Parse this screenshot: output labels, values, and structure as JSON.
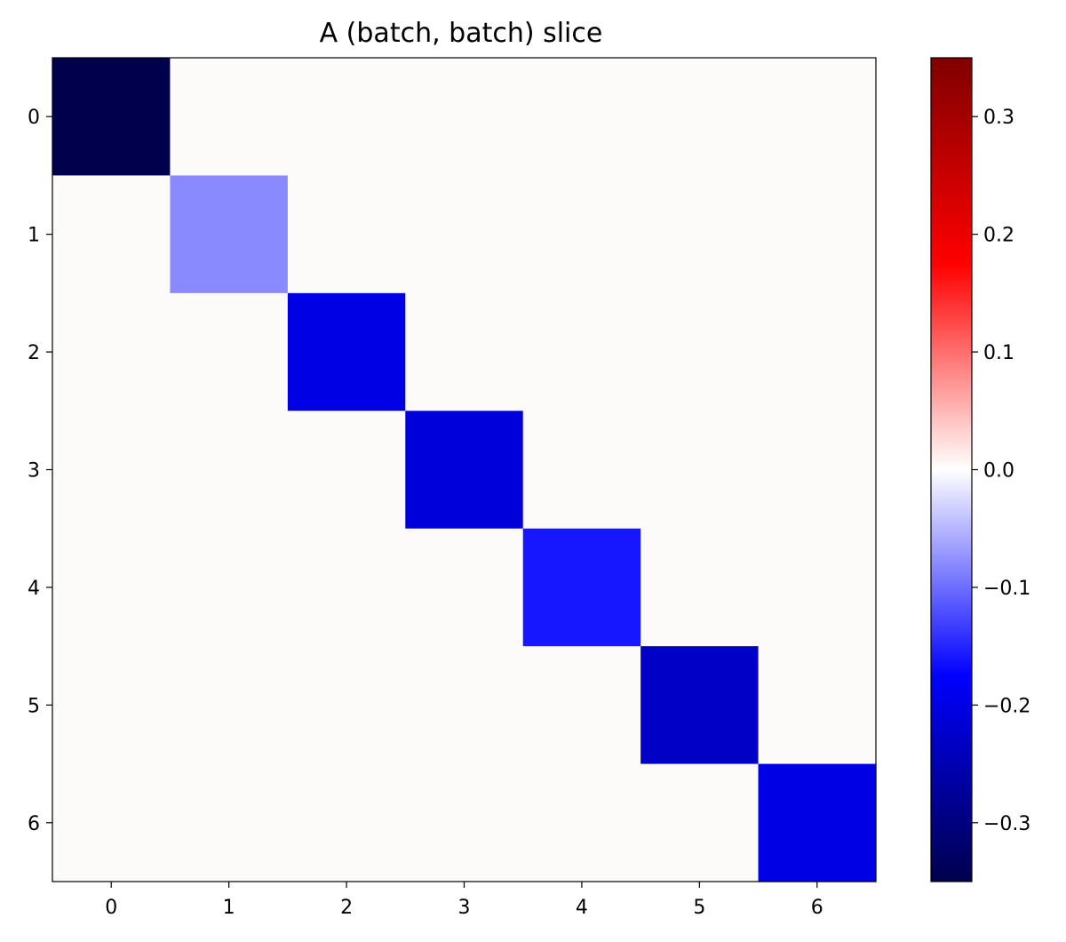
{
  "chart_data": {
    "type": "heatmap",
    "title": "A (batch, batch) slice",
    "xlabel": "",
    "ylabel": "",
    "x_categories": [
      "0",
      "1",
      "2",
      "3",
      "4",
      "5",
      "6"
    ],
    "y_categories": [
      "0",
      "1",
      "2",
      "3",
      "4",
      "5",
      "6"
    ],
    "values": [
      [
        -0.35,
        0,
        0,
        0,
        0,
        0,
        0
      ],
      [
        0,
        -0.08,
        0,
        0,
        0,
        0,
        0
      ],
      [
        0,
        0,
        -0.2,
        0,
        0,
        0,
        0
      ],
      [
        0,
        0,
        0,
        -0.21,
        0,
        0,
        0
      ],
      [
        0,
        0,
        0,
        0,
        -0.16,
        0,
        0
      ],
      [
        0,
        0,
        0,
        0,
        0,
        -0.23,
        0
      ],
      [
        0,
        0,
        0,
        0,
        0,
        0,
        -0.2
      ]
    ],
    "colormap": "seismic",
    "vmin": -0.35,
    "vmax": 0.35,
    "colorbar": {
      "ticks": [
        0.3,
        0.2,
        0.1,
        0.0,
        -0.1,
        -0.2,
        -0.3
      ],
      "tick_labels": [
        "0.3",
        "0.2",
        "0.1",
        "0.0",
        "−0.1",
        "−0.2",
        "−0.3"
      ]
    },
    "grid": false,
    "legend": "none"
  }
}
